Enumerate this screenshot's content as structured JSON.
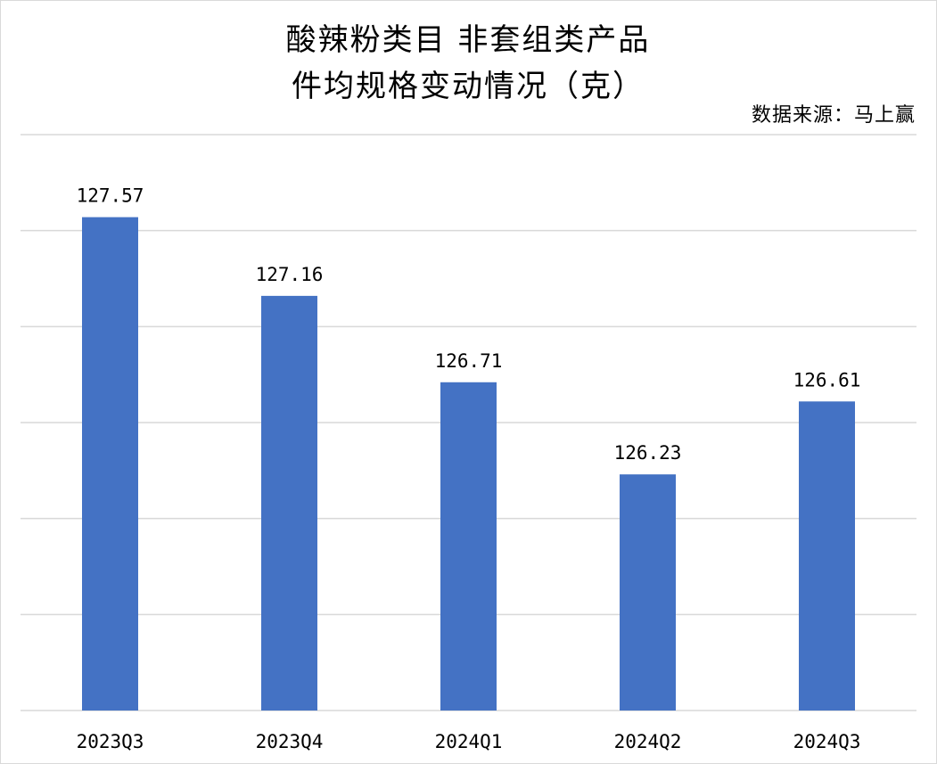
{
  "chart_data": {
    "type": "bar",
    "title_lines": [
      "酸辣粉类目 非套组类产品",
      "件均规格变动情况（克）"
    ],
    "source": "数据来源：马上赢",
    "categories": [
      "2023Q3",
      "2023Q4",
      "2024Q1",
      "2024Q2",
      "2024Q3"
    ],
    "series": [
      {
        "values": [
          127.57,
          127.16,
          126.71,
          126.23,
          126.61
        ],
        "color": "#4472c4"
      }
    ],
    "data_labels": [
      "127.57",
      "127.16",
      "126.71",
      "126.23",
      "126.61"
    ],
    "ylim": [
      125.0,
      128.0
    ],
    "y_gridlines": [
      125.0,
      125.5,
      126.0,
      126.5,
      127.0,
      127.5,
      128.0
    ],
    "grid": true,
    "legend": "none",
    "xlabel": "",
    "ylabel": ""
  }
}
